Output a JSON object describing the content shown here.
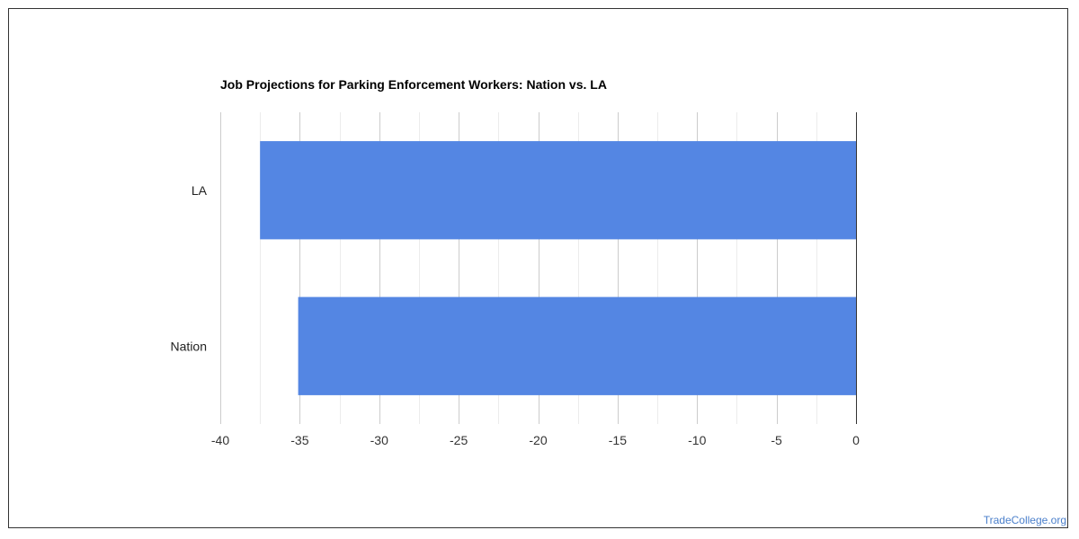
{
  "chart_data": {
    "type": "bar",
    "orientation": "horizontal",
    "title": "Job Projections for Parking Enforcement Workers: Nation vs. LA",
    "categories": [
      "LA",
      "Nation"
    ],
    "values": [
      -37.5,
      -35.1
    ],
    "xlim": [
      -40,
      0
    ],
    "ticks": [
      "-40",
      "-35",
      "-30",
      "-25",
      "-20",
      "-15",
      "-10",
      "-5",
      "0"
    ],
    "tick_values": [
      -40,
      -35,
      -30,
      -25,
      -20,
      -15,
      -10,
      -5,
      0
    ],
    "grid": true,
    "legend": "none",
    "bar_color": "#5486e3"
  },
  "watermark": "TradeCollege.org"
}
